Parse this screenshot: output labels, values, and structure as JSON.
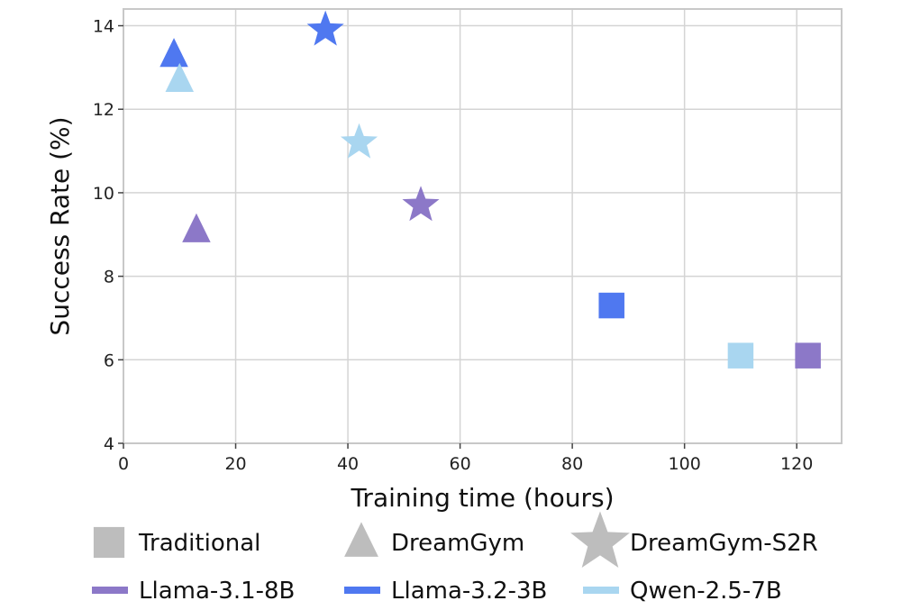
{
  "chart_data": {
    "type": "scatter",
    "xlabel": "Training time (hours)",
    "ylabel": "Success Rate (%)",
    "xlim": [
      0,
      128
    ],
    "ylim": [
      4,
      14.4
    ],
    "xticks": [
      "0",
      "20",
      "40",
      "60",
      "80",
      "100",
      "120"
    ],
    "yticks": [
      "4",
      "6",
      "8",
      "10",
      "12",
      "14"
    ],
    "grid": true,
    "legend_placement": "bottom",
    "methods": [
      {
        "name": "Traditional",
        "marker": "square"
      },
      {
        "name": "DreamGym",
        "marker": "triangle"
      },
      {
        "name": "DreamGym-S2R",
        "marker": "star"
      }
    ],
    "models": [
      {
        "name": "Llama-3.1-8B",
        "color": "#8c78c8"
      },
      {
        "name": "Llama-3.2-3B",
        "color": "#4f78f0"
      },
      {
        "name": "Qwen-2.5-7B",
        "color": "#a9d6f0"
      }
    ],
    "points": [
      {
        "method": "Traditional",
        "model": "Llama-3.1-8B",
        "x": 122,
        "y": 6.1
      },
      {
        "method": "Traditional",
        "model": "Llama-3.2-3B",
        "x": 87,
        "y": 7.3
      },
      {
        "method": "Traditional",
        "model": "Qwen-2.5-7B",
        "x": 110,
        "y": 6.1
      },
      {
        "method": "DreamGym",
        "model": "Llama-3.1-8B",
        "x": 13,
        "y": 9.1
      },
      {
        "method": "DreamGym",
        "model": "Llama-3.2-3B",
        "x": 9,
        "y": 13.3
      },
      {
        "method": "DreamGym",
        "model": "Qwen-2.5-7B",
        "x": 10,
        "y": 12.7
      },
      {
        "method": "DreamGym-S2R",
        "model": "Llama-3.1-8B",
        "x": 53,
        "y": 9.7
      },
      {
        "method": "DreamGym-S2R",
        "model": "Llama-3.2-3B",
        "x": 36,
        "y": 13.9
      },
      {
        "method": "DreamGym-S2R",
        "model": "Qwen-2.5-7B",
        "x": 42,
        "y": 11.2
      }
    ]
  }
}
